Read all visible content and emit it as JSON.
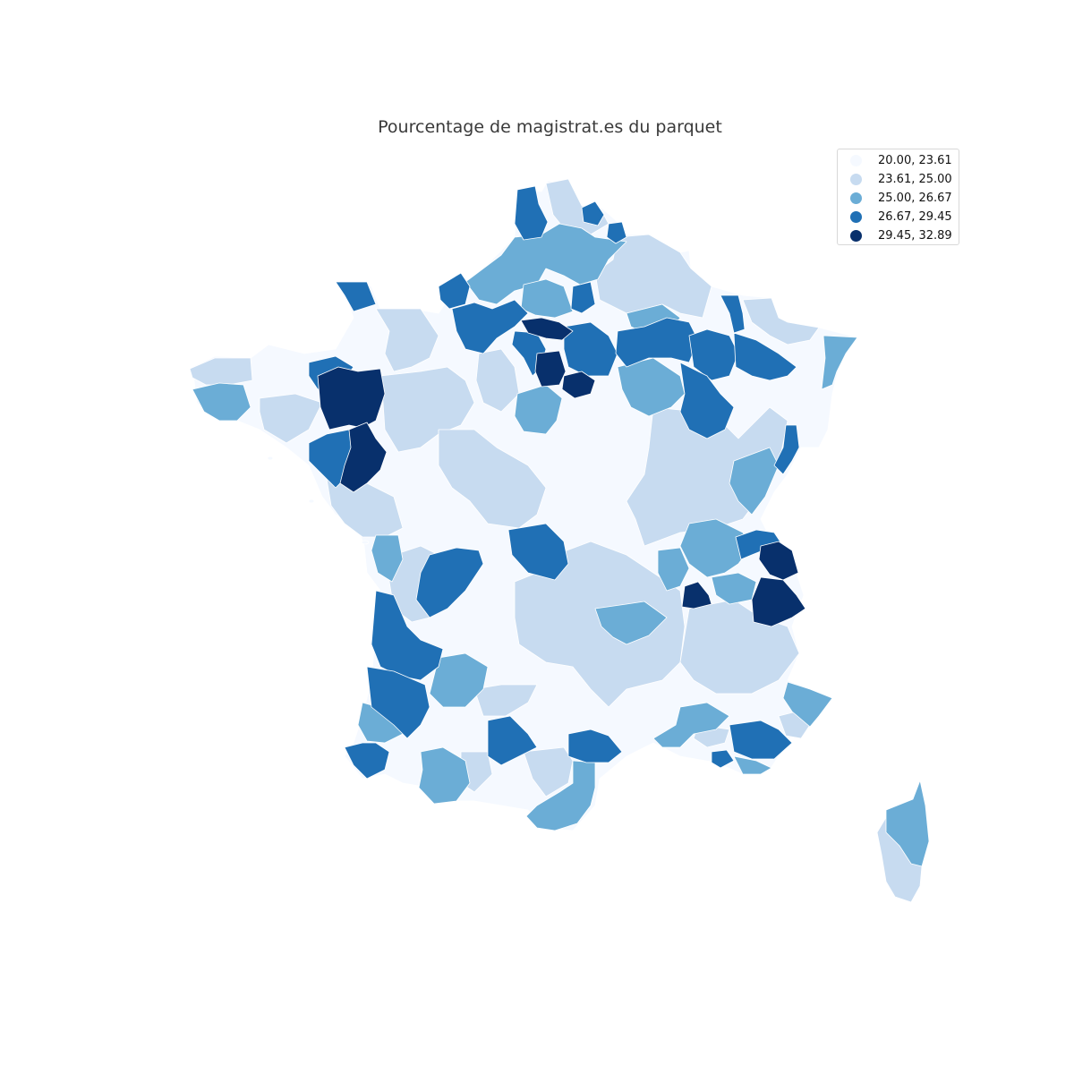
{
  "map": {
    "title": "Pourcentage de magistrat.es du parquet",
    "colors": {
      "class1": "#f5f9ff",
      "class2": "#c7dbf0",
      "class3": "#6badd6",
      "class4": "#2070b5",
      "class5": "#08306c",
      "border": "#ffffff"
    }
  },
  "legend": {
    "items": [
      {
        "label": "20.00, 23.61",
        "color": "#f5f9ff"
      },
      {
        "label": "23.61, 25.00",
        "color": "#c7dbf0"
      },
      {
        "label": "25.00, 26.67",
        "color": "#6badd6"
      },
      {
        "label": "26.67, 29.45",
        "color": "#2070b5"
      },
      {
        "label": "29.45, 32.89",
        "color": "#08306c"
      }
    ]
  }
}
